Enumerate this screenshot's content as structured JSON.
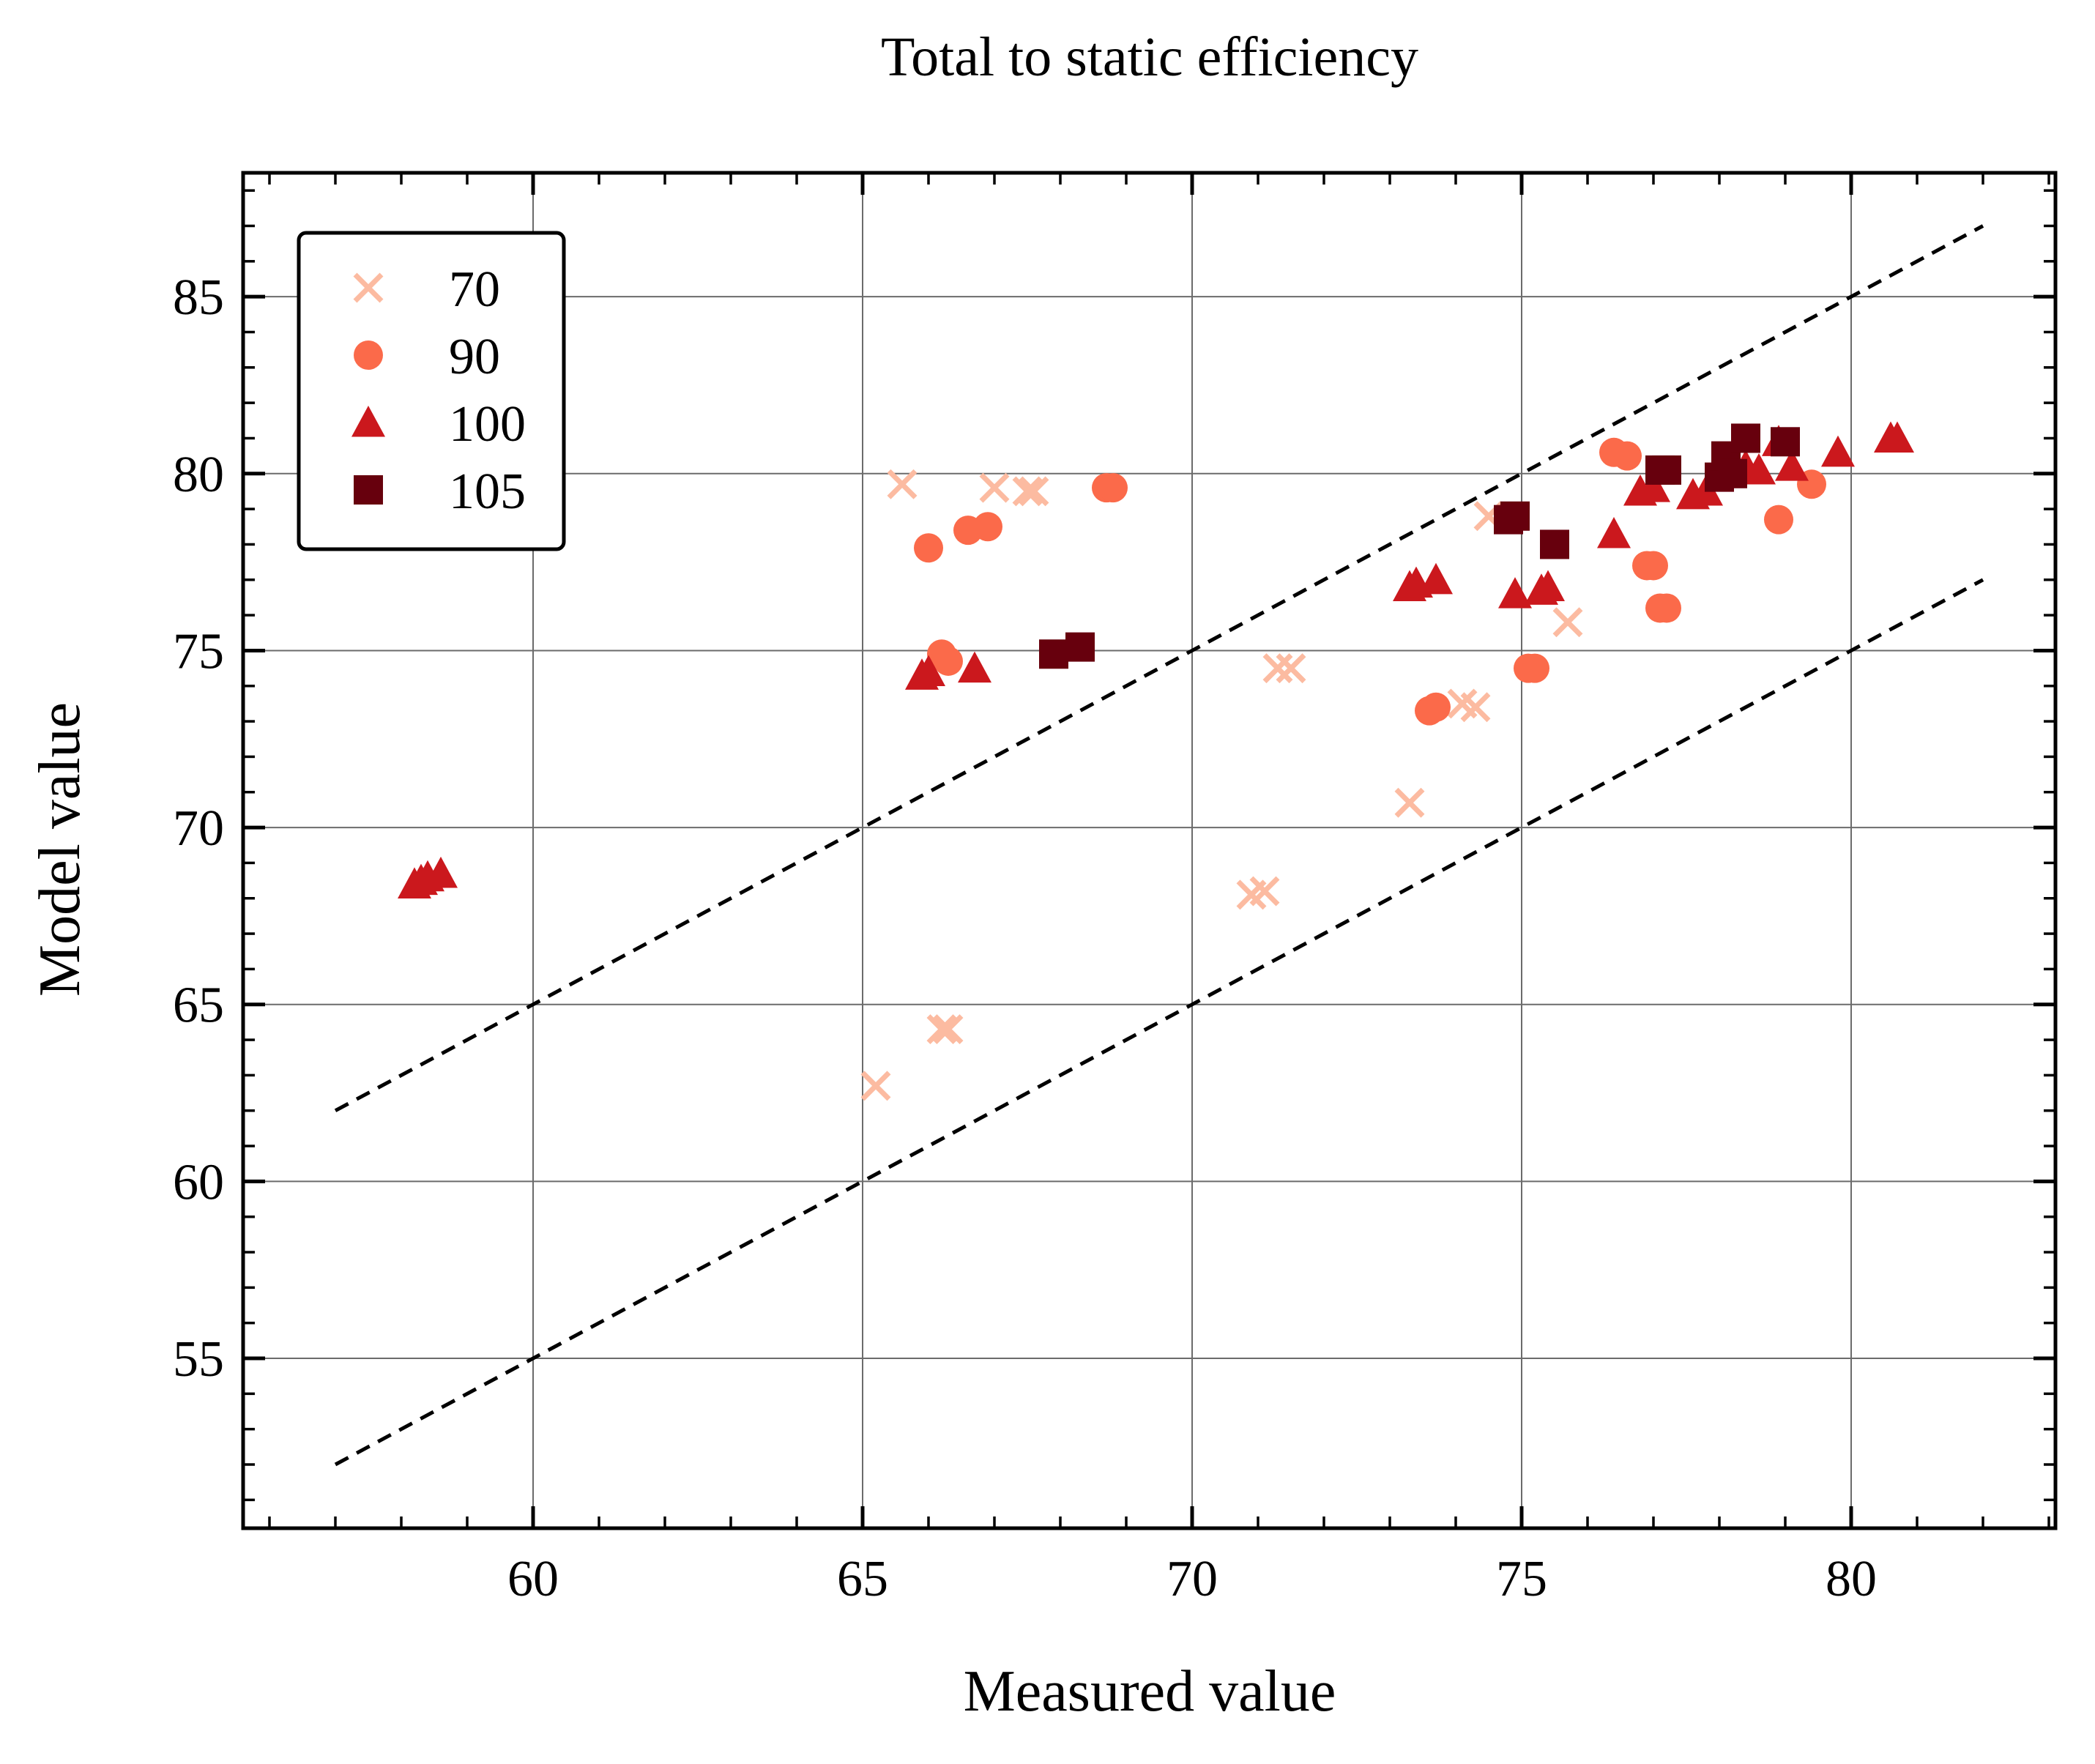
{
  "chart_data": {
    "type": "scatter",
    "title": "Total to static efficiency",
    "xlabel": "Measured value",
    "ylabel": "Model value",
    "xlim": [
      55.6,
      83.1
    ],
    "ylim": [
      50.2,
      88.5
    ],
    "xticks": [
      60,
      65,
      70,
      75,
      80
    ],
    "yticks": [
      55,
      60,
      65,
      70,
      75,
      80,
      85
    ],
    "grid": true,
    "legend_position": "top-left",
    "reference_lines": [
      {
        "x": [
          57,
          82
        ],
        "y": [
          62,
          87
        ],
        "style": "dashed"
      },
      {
        "x": [
          57,
          82
        ],
        "y": [
          52,
          77
        ],
        "style": "dashed"
      }
    ],
    "series": [
      {
        "name": "70",
        "marker": "x",
        "color": "#fcbba1",
        "points": [
          [
            65.6,
            79.7
          ],
          [
            67.0,
            79.6
          ],
          [
            67.5,
            79.5
          ],
          [
            67.6,
            79.5
          ],
          [
            66.2,
            64.3
          ],
          [
            66.3,
            64.3
          ],
          [
            65.2,
            62.7
          ],
          [
            70.9,
            68.1
          ],
          [
            71.1,
            68.2
          ],
          [
            71.3,
            74.5
          ],
          [
            71.5,
            74.5
          ],
          [
            73.3,
            70.7
          ],
          [
            74.1,
            73.5
          ],
          [
            74.3,
            73.4
          ],
          [
            74.5,
            78.8
          ],
          [
            75.7,
            75.8
          ]
        ]
      },
      {
        "name": "90",
        "marker": "circle",
        "color": "#fb6a4a",
        "points": [
          [
            66.0,
            77.9
          ],
          [
            66.6,
            78.4
          ],
          [
            66.9,
            78.5
          ],
          [
            68.7,
            79.6
          ],
          [
            68.8,
            79.6
          ],
          [
            66.2,
            74.9
          ],
          [
            66.3,
            74.7
          ],
          [
            73.6,
            73.3
          ],
          [
            73.7,
            73.4
          ],
          [
            75.1,
            74.5
          ],
          [
            75.2,
            74.5
          ],
          [
            76.4,
            80.6
          ],
          [
            76.6,
            80.5
          ],
          [
            76.9,
            77.4
          ],
          [
            77.0,
            77.4
          ],
          [
            77.1,
            76.2
          ],
          [
            77.2,
            76.2
          ],
          [
            78.9,
            78.7
          ],
          [
            79.4,
            79.7
          ]
        ]
      },
      {
        "name": "100",
        "marker": "triangle",
        "color": "#cb181d",
        "points": [
          [
            58.2,
            68.4
          ],
          [
            58.3,
            68.5
          ],
          [
            58.4,
            68.6
          ],
          [
            58.6,
            68.7
          ],
          [
            65.9,
            74.3
          ],
          [
            66.0,
            74.4
          ],
          [
            66.7,
            74.5
          ],
          [
            73.3,
            76.8
          ],
          [
            73.4,
            76.9
          ],
          [
            73.7,
            77.0
          ],
          [
            74.9,
            76.6
          ],
          [
            75.3,
            76.7
          ],
          [
            75.4,
            76.8
          ],
          [
            76.4,
            78.3
          ],
          [
            76.8,
            79.5
          ],
          [
            77.0,
            79.6
          ],
          [
            77.6,
            79.4
          ],
          [
            77.8,
            79.5
          ],
          [
            78.4,
            80.2
          ],
          [
            78.6,
            80.1
          ],
          [
            78.9,
            80.9
          ],
          [
            79.1,
            80.2
          ],
          [
            79.8,
            80.6
          ],
          [
            80.6,
            81.0
          ],
          [
            80.7,
            81.0
          ]
        ]
      },
      {
        "name": "105",
        "marker": "square",
        "color": "#67000d",
        "points": [
          [
            67.9,
            74.9
          ],
          [
            68.3,
            75.1
          ],
          [
            74.8,
            78.7
          ],
          [
            74.9,
            78.8
          ],
          [
            75.5,
            78.0
          ],
          [
            77.1,
            80.1
          ],
          [
            77.2,
            80.1
          ],
          [
            78.0,
            79.9
          ],
          [
            78.1,
            80.5
          ],
          [
            78.2,
            80.0
          ],
          [
            78.4,
            81.0
          ],
          [
            79.0,
            80.9
          ]
        ]
      }
    ]
  }
}
